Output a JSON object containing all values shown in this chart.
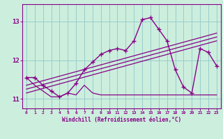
{
  "xlabel": "Windchill (Refroidissement éolien,°C)",
  "bg_color": "#cceedd",
  "grid_color": "#99cccc",
  "line_color": "#880088",
  "hours": [
    0,
    1,
    2,
    3,
    4,
    5,
    6,
    7,
    8,
    9,
    10,
    11,
    12,
    13,
    14,
    15,
    16,
    17,
    18,
    19,
    20,
    21,
    22,
    23
  ],
  "main_line": [
    11.55,
    11.55,
    11.35,
    11.2,
    11.05,
    11.15,
    11.4,
    11.75,
    11.95,
    12.15,
    12.25,
    12.3,
    12.25,
    12.5,
    13.05,
    13.1,
    12.8,
    12.5,
    11.75,
    11.3,
    11.15,
    12.3,
    12.2,
    11.85
  ],
  "min_line_x": [
    0,
    1,
    2,
    3,
    4,
    5,
    6,
    7,
    8,
    9,
    10,
    11,
    12,
    13,
    14,
    15,
    16,
    17,
    18,
    19,
    20,
    21,
    22,
    23
  ],
  "min_line_y": [
    11.55,
    11.35,
    11.2,
    11.05,
    11.05,
    11.15,
    11.1,
    11.35,
    11.15,
    11.1,
    11.1,
    11.1,
    11.1,
    11.1,
    11.1,
    11.1,
    11.1,
    11.1,
    11.1,
    11.1,
    11.1,
    11.1,
    11.1,
    11.1
  ],
  "trend1_x": [
    0,
    23
  ],
  "trend1_y": [
    11.35,
    12.7
  ],
  "trend2_x": [
    0,
    23
  ],
  "trend2_y": [
    11.25,
    12.6
  ],
  "trend3_x": [
    0,
    23
  ],
  "trend3_y": [
    11.15,
    12.5
  ],
  "ylim": [
    10.75,
    13.45
  ],
  "yticks": [
    11,
    12,
    13
  ],
  "xlim": [
    -0.5,
    23.5
  ]
}
